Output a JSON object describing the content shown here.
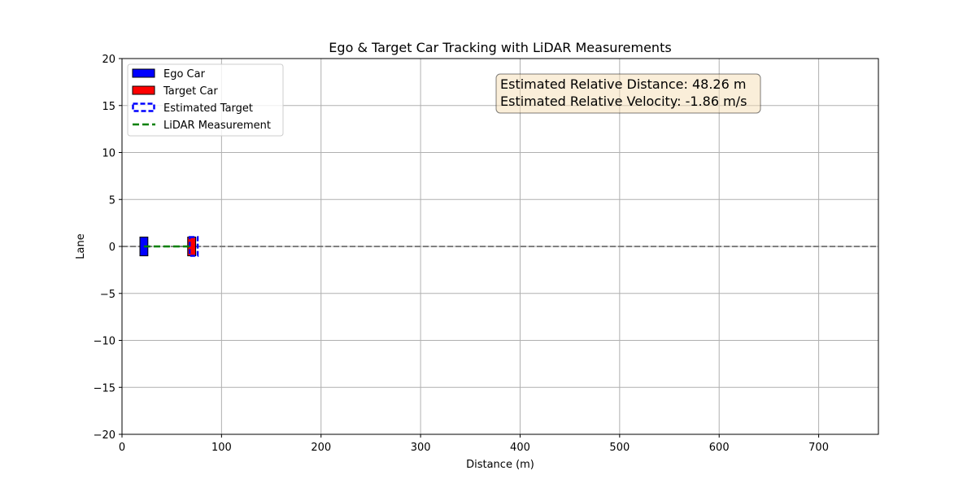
{
  "chart_data": {
    "type": "scatter",
    "title": "Ego & Target Car Tracking with LiDAR Measurements",
    "xlabel": "Distance (m)",
    "ylabel": "Lane",
    "xlim": [
      0,
      760
    ],
    "ylim": [
      -20,
      20
    ],
    "xticks": [
      0,
      100,
      200,
      300,
      400,
      500,
      600,
      700
    ],
    "yticks": [
      -20,
      -15,
      -10,
      -5,
      0,
      5,
      10,
      15,
      20
    ],
    "xtick_labels": [
      "0",
      "100",
      "200",
      "300",
      "400",
      "500",
      "600",
      "700"
    ],
    "ytick_labels": [
      "−20",
      "−15",
      "−10",
      "−5",
      "0",
      "5",
      "10",
      "15",
      "20"
    ],
    "grid": true,
    "legend_position": "top-left",
    "legend": [
      {
        "label": "Ego Car",
        "kind": "patch",
        "fill": "#0000ff",
        "edge": "#000000"
      },
      {
        "label": "Target Car",
        "kind": "patch",
        "fill": "#ff0000",
        "edge": "#000000"
      },
      {
        "label": "Estimated Target",
        "kind": "dashed-patch",
        "fill": "none",
        "edge": "#0000ff"
      },
      {
        "label": "LiDAR Measurement",
        "kind": "dashed-line",
        "color": "#008000"
      }
    ],
    "road_line": {
      "y": 0,
      "color": "#808080",
      "style": "dashed"
    },
    "ego_car": {
      "x": [
        18,
        26
      ],
      "y": [
        -1,
        1
      ]
    },
    "target_car": {
      "x": [
        66,
        74
      ],
      "y": [
        -1,
        1
      ]
    },
    "estimated_target": {
      "x": [
        68,
        76
      ],
      "y": [
        -1,
        1
      ]
    },
    "lidar_measurement": {
      "x": [
        22,
        70
      ],
      "y": [
        0,
        0
      ]
    },
    "annotation": {
      "lines": [
        "Estimated Relative Distance: 48.26 m",
        "Estimated Relative Velocity: -1.86 m/s"
      ],
      "relative_distance": 48.26,
      "relative_velocity": -1.86,
      "box_fill": "#f5deb3",
      "box_edge": "#000000",
      "position": "top-center"
    }
  }
}
